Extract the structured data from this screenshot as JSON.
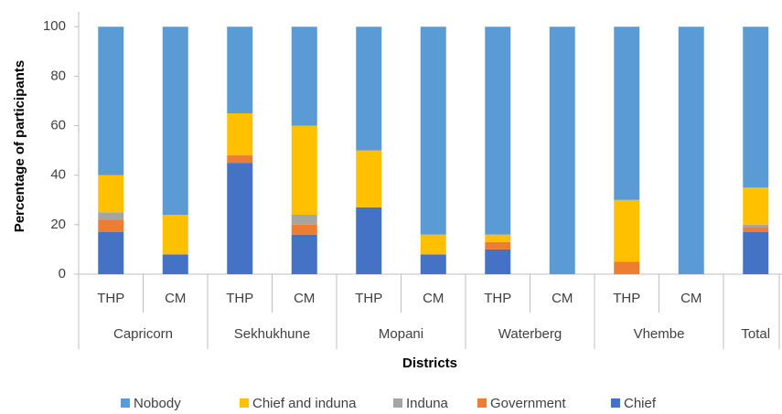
{
  "chart_data": {
    "type": "stacked_bar",
    "y_label": "Percentage of participants",
    "x_label": "Districts",
    "groups": [
      {
        "name": "Capricorn",
        "categories": [
          "THP",
          "CM"
        ]
      },
      {
        "name": "Sekhukhune",
        "categories": [
          "THP",
          "CM"
        ]
      },
      {
        "name": "Mopani",
        "categories": [
          "THP",
          "CM"
        ]
      },
      {
        "name": "Waterberg",
        "categories": [
          "THP",
          "CM"
        ]
      },
      {
        "name": "Vhembe",
        "categories": [
          "THP",
          "CM"
        ]
      },
      {
        "name": "Total",
        "categories": [
          null
        ]
      }
    ],
    "series": [
      {
        "name": "Nobody",
        "color": "#5b9bd5",
        "values": [
          60,
          76,
          35,
          40,
          50,
          84,
          84,
          100,
          70,
          100,
          65
        ]
      },
      {
        "name": "Chief and induna",
        "color": "#ffc000",
        "values": [
          15,
          16,
          17,
          36,
          23,
          8,
          3,
          0,
          25,
          0,
          15
        ]
      },
      {
        "name": "Induna",
        "color": "#a5a5a5",
        "values": [
          3,
          0,
          0,
          4,
          0,
          0,
          0,
          0,
          0,
          0,
          1
        ]
      },
      {
        "name": "Government",
        "color": "#ed7d31",
        "values": [
          5,
          0,
          3,
          4,
          0,
          0,
          3,
          0,
          5,
          0,
          2
        ]
      },
      {
        "name": "Chief",
        "color": "#4472c4",
        "values": [
          17,
          8,
          45,
          16,
          27,
          8,
          10,
          0,
          0,
          0,
          17
        ]
      }
    ],
    "ylim": [
      0,
      106
    ],
    "yticks": [
      0,
      20,
      40,
      60,
      80,
      100
    ],
    "grid": false,
    "legend": "bottom"
  }
}
